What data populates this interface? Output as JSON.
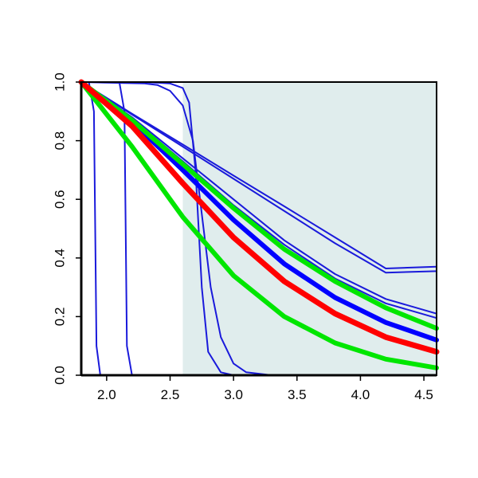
{
  "chart_data": {
    "type": "line",
    "title": "",
    "xlabel": "",
    "ylabel": "",
    "xlim": [
      1.8,
      4.6
    ],
    "ylim": [
      0.0,
      1.0
    ],
    "x_ticks": [
      "2.0",
      "2.5",
      "3.0",
      "3.5",
      "4.0",
      "4.5"
    ],
    "y_ticks": [
      "0.0",
      "0.2",
      "0.4",
      "0.6",
      "0.8",
      "1.0"
    ],
    "shaded_region": {
      "x_from": 2.6,
      "x_to": 4.6,
      "color": "#e0eded"
    },
    "grid": false,
    "legend": "none",
    "series": [
      {
        "color": "#1a1adb",
        "width": 2,
        "points": [
          [
            1.8,
            1.0
          ],
          [
            1.86,
            1.0
          ],
          [
            1.9,
            0.9
          ],
          [
            1.92,
            0.1
          ],
          [
            1.95,
            0.0
          ],
          [
            4.6,
            0.0
          ]
        ]
      },
      {
        "color": "#1a1adb",
        "width": 2,
        "points": [
          [
            1.8,
            1.0
          ],
          [
            2.1,
            1.0
          ],
          [
            2.14,
            0.9
          ],
          [
            2.16,
            0.1
          ],
          [
            2.2,
            0.0
          ],
          [
            4.6,
            0.0
          ]
        ]
      },
      {
        "color": "#1a1adb",
        "width": 2,
        "points": [
          [
            1.8,
            1.0
          ],
          [
            2.3,
            1.0
          ],
          [
            2.5,
            0.995
          ],
          [
            2.6,
            0.98
          ],
          [
            2.65,
            0.93
          ],
          [
            2.7,
            0.7
          ],
          [
            2.75,
            0.3
          ],
          [
            2.8,
            0.08
          ],
          [
            2.9,
            0.01
          ],
          [
            3.0,
            0.0
          ],
          [
            4.6,
            0.0
          ]
        ]
      },
      {
        "color": "#1a1adb",
        "width": 2,
        "points": [
          [
            1.8,
            1.0
          ],
          [
            2.3,
            0.995
          ],
          [
            2.4,
            0.99
          ],
          [
            2.5,
            0.97
          ],
          [
            2.6,
            0.92
          ],
          [
            2.68,
            0.8
          ],
          [
            2.75,
            0.55
          ],
          [
            2.82,
            0.3
          ],
          [
            2.9,
            0.13
          ],
          [
            3.0,
            0.04
          ],
          [
            3.1,
            0.01
          ],
          [
            3.3,
            0.0
          ],
          [
            4.6,
            0.0
          ]
        ]
      },
      {
        "color": "#1a1adb",
        "width": 2,
        "points": [
          [
            1.8,
            1.0
          ],
          [
            2.2,
            0.892
          ],
          [
            2.6,
            0.787
          ],
          [
            3.0,
            0.681
          ],
          [
            3.4,
            0.576
          ],
          [
            3.8,
            0.47
          ],
          [
            4.2,
            0.364
          ],
          [
            4.6,
            0.37
          ]
        ]
      },
      {
        "color": "#1a1adb",
        "width": 2,
        "points": [
          [
            1.8,
            1.0
          ],
          [
            2.2,
            0.889
          ],
          [
            2.6,
            0.78
          ],
          [
            3.0,
            0.67
          ],
          [
            3.4,
            0.56
          ],
          [
            3.8,
            0.45
          ],
          [
            4.2,
            0.35
          ],
          [
            4.6,
            0.355
          ]
        ]
      },
      {
        "color": "#1a1adb",
        "width": 2,
        "points": [
          [
            1.8,
            1.0
          ],
          [
            2.2,
            0.88
          ],
          [
            2.6,
            0.74
          ],
          [
            3.0,
            0.6
          ],
          [
            3.4,
            0.46
          ],
          [
            3.8,
            0.345
          ],
          [
            4.2,
            0.26
          ],
          [
            4.6,
            0.21
          ]
        ]
      },
      {
        "color": "#1a1adb",
        "width": 2,
        "points": [
          [
            1.8,
            1.0
          ],
          [
            2.2,
            0.875
          ],
          [
            2.6,
            0.73
          ],
          [
            3.0,
            0.58
          ],
          [
            3.4,
            0.445
          ],
          [
            3.8,
            0.33
          ],
          [
            4.2,
            0.245
          ],
          [
            4.6,
            0.195
          ]
        ]
      },
      {
        "color": "#0000ff",
        "width": 6,
        "points": [
          [
            1.8,
            1.0
          ],
          [
            2.2,
            0.865
          ],
          [
            2.6,
            0.7
          ],
          [
            3.0,
            0.53
          ],
          [
            3.4,
            0.38
          ],
          [
            3.8,
            0.265
          ],
          [
            4.2,
            0.18
          ],
          [
            4.6,
            0.12
          ]
        ]
      },
      {
        "color": "#00e600",
        "width": 6,
        "points": [
          [
            1.8,
            1.0
          ],
          [
            2.2,
            0.87
          ],
          [
            2.6,
            0.72
          ],
          [
            3.0,
            0.57
          ],
          [
            3.4,
            0.43
          ],
          [
            3.8,
            0.32
          ],
          [
            4.2,
            0.23
          ],
          [
            4.6,
            0.16
          ]
        ]
      },
      {
        "color": "#00e600",
        "width": 6,
        "points": [
          [
            1.8,
            1.0
          ],
          [
            2.2,
            0.78
          ],
          [
            2.6,
            0.54
          ],
          [
            3.0,
            0.34
          ],
          [
            3.4,
            0.2
          ],
          [
            3.8,
            0.11
          ],
          [
            4.2,
            0.055
          ],
          [
            4.6,
            0.025
          ]
        ]
      },
      {
        "color": "#ff0000",
        "width": 7,
        "points": [
          [
            1.8,
            1.0
          ],
          [
            2.2,
            0.85
          ],
          [
            2.6,
            0.655
          ],
          [
            3.0,
            0.47
          ],
          [
            3.4,
            0.32
          ],
          [
            3.8,
            0.21
          ],
          [
            4.2,
            0.13
          ],
          [
            4.6,
            0.08
          ]
        ]
      }
    ]
  }
}
